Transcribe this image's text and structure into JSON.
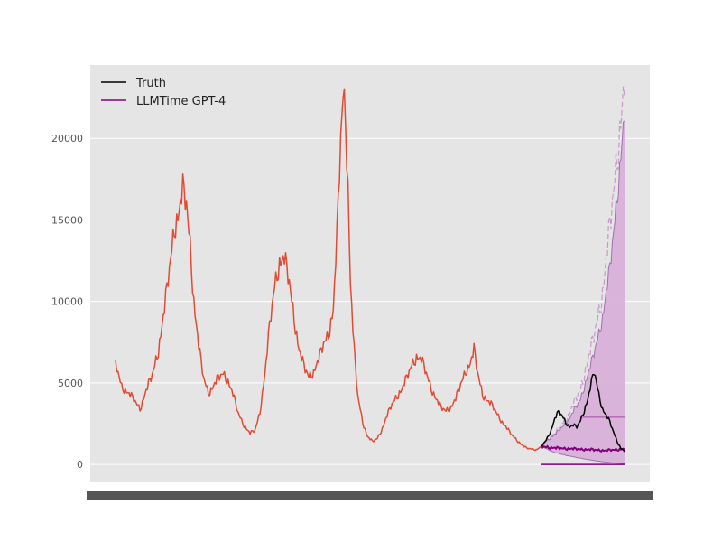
{
  "chart_data": {
    "type": "line",
    "title": "",
    "xlabel": "",
    "ylabel": "",
    "ylim": [
      -1100,
      24500
    ],
    "yticks": [
      0,
      5000,
      10000,
      15000,
      20000
    ],
    "ytick_labels": [
      "0",
      "5000",
      "10000",
      "15000",
      "20000"
    ],
    "grid": true,
    "legend_position": "top-left",
    "colors": {
      "history": "#e24a33",
      "truth": "#000000",
      "forecast": "#800080",
      "band": "#d8b0d8",
      "plot_background": "#e5e5e5",
      "grid": "#ffffff",
      "xtick_band": "#555555"
    },
    "legend": [
      {
        "label": "Truth",
        "color": "#000000"
      },
      {
        "label": "LLMTime GPT-4",
        "color": "#800080"
      }
    ],
    "history_anchors": [
      [
        0,
        6200
      ],
      [
        5,
        4800
      ],
      [
        10,
        4400
      ],
      [
        15,
        4000
      ],
      [
        20,
        3400
      ],
      [
        25,
        4500
      ],
      [
        30,
        5500
      ],
      [
        35,
        7000
      ],
      [
        40,
        9500
      ],
      [
        44,
        12000
      ],
      [
        48,
        14500
      ],
      [
        52,
        15500
      ],
      [
        55,
        16800
      ],
      [
        58,
        16000
      ],
      [
        61,
        13500
      ],
      [
        64,
        10000
      ],
      [
        68,
        7200
      ],
      [
        72,
        5300
      ],
      [
        76,
        4400
      ],
      [
        80,
        4800
      ],
      [
        84,
        5300
      ],
      [
        88,
        5600
      ],
      [
        92,
        5100
      ],
      [
        96,
        4300
      ],
      [
        100,
        3200
      ],
      [
        105,
        2400
      ],
      [
        110,
        1900
      ],
      [
        114,
        2100
      ],
      [
        118,
        3200
      ],
      [
        122,
        5500
      ],
      [
        126,
        8500
      ],
      [
        130,
        11000
      ],
      [
        134,
        12400
      ],
      [
        138,
        12600
      ],
      [
        142,
        11200
      ],
      [
        146,
        9000
      ],
      [
        150,
        7000
      ],
      [
        154,
        6000
      ],
      [
        158,
        5400
      ],
      [
        162,
        5700
      ],
      [
        166,
        6400
      ],
      [
        170,
        7400
      ],
      [
        174,
        8000
      ],
      [
        178,
        9500
      ],
      [
        181,
        14000
      ],
      [
        184,
        20000
      ],
      [
        186,
        22800
      ],
      [
        188,
        21500
      ],
      [
        190,
        17000
      ],
      [
        192,
        11000
      ],
      [
        195,
        7000
      ],
      [
        198,
        4200
      ],
      [
        202,
        2600
      ],
      [
        206,
        1700
      ],
      [
        210,
        1400
      ],
      [
        214,
        1600
      ],
      [
        218,
        2200
      ],
      [
        222,
        3000
      ],
      [
        226,
        3700
      ],
      [
        230,
        4200
      ],
      [
        234,
        4600
      ],
      [
        238,
        5300
      ],
      [
        242,
        6100
      ],
      [
        246,
        6600
      ],
      [
        250,
        6400
      ],
      [
        254,
        5600
      ],
      [
        258,
        4700
      ],
      [
        262,
        4000
      ],
      [
        266,
        3500
      ],
      [
        270,
        3300
      ],
      [
        274,
        3500
      ],
      [
        278,
        4000
      ],
      [
        282,
        4900
      ],
      [
        286,
        5700
      ],
      [
        290,
        6200
      ],
      [
        293,
        7000
      ],
      [
        296,
        5600
      ],
      [
        300,
        4300
      ],
      [
        304,
        3900
      ],
      [
        308,
        3600
      ],
      [
        312,
        3100
      ],
      [
        316,
        2600
      ],
      [
        320,
        2200
      ],
      [
        324,
        1800
      ],
      [
        328,
        1500
      ],
      [
        332,
        1200
      ],
      [
        336,
        1000
      ],
      [
        340,
        950
      ],
      [
        344,
        900
      ],
      [
        348,
        1100
      ]
    ],
    "truth_anchors": [
      [
        348,
        1100
      ],
      [
        352,
        1500
      ],
      [
        356,
        2100
      ],
      [
        359,
        2800
      ],
      [
        362,
        3200
      ],
      [
        365,
        3000
      ],
      [
        368,
        2600
      ],
      [
        371,
        2300
      ],
      [
        374,
        2400
      ],
      [
        377,
        2300
      ],
      [
        380,
        2700
      ],
      [
        383,
        3300
      ],
      [
        386,
        4000
      ],
      [
        389,
        5000
      ],
      [
        391,
        5700
      ],
      [
        393,
        5100
      ],
      [
        395,
        4300
      ],
      [
        398,
        3400
      ],
      [
        401,
        3000
      ],
      [
        404,
        2600
      ],
      [
        407,
        2000
      ],
      [
        410,
        1400
      ],
      [
        413,
        1000
      ],
      [
        416,
        800
      ]
    ],
    "forecast_median_anchors": [
      [
        348,
        1100
      ],
      [
        360,
        1000
      ],
      [
        375,
        950
      ],
      [
        390,
        900
      ],
      [
        400,
        850
      ],
      [
        416,
        950
      ]
    ],
    "forecast_lower_anchors": [
      [
        348,
        1100
      ],
      [
        360,
        700
      ],
      [
        375,
        450
      ],
      [
        390,
        250
      ],
      [
        405,
        100
      ],
      [
        416,
        50
      ]
    ],
    "forecast_upper_anchors": [
      [
        348,
        1200
      ],
      [
        360,
        1900
      ],
      [
        370,
        2700
      ],
      [
        380,
        4000
      ],
      [
        390,
        6500
      ],
      [
        398,
        9000
      ],
      [
        404,
        12000
      ],
      [
        410,
        16500
      ],
      [
        416,
        21500
      ]
    ],
    "forecast_upper_sample_anchors": [
      [
        348,
        1200
      ],
      [
        360,
        2000
      ],
      [
        370,
        3000
      ],
      [
        380,
        4600
      ],
      [
        390,
        7500
      ],
      [
        398,
        10500
      ],
      [
        404,
        14500
      ],
      [
        410,
        19000
      ],
      [
        416,
        23300
      ]
    ],
    "forecast_reference_levels": [
      {
        "value": 0,
        "from_x": 348,
        "to_x": 416
      },
      {
        "value": 2900,
        "from_x": 380,
        "to_x": 416
      }
    ]
  }
}
